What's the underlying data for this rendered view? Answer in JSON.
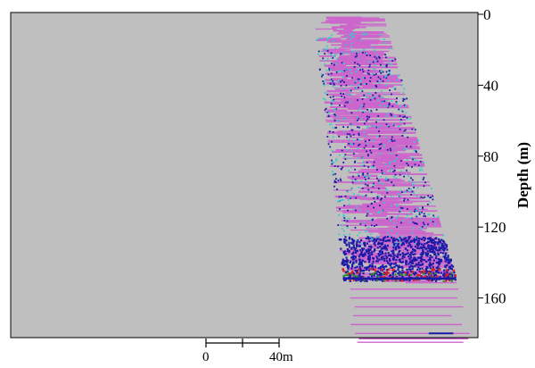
{
  "chart_data": {
    "type": "scatter",
    "ylabel": "Depth (m)",
    "y_inverted": true,
    "ylim": [
      0,
      190
    ],
    "xlim": [
      0,
      190
    ],
    "y_ticks": [
      0,
      40,
      80,
      120,
      160
    ],
    "y_tick_labels": [
      "0",
      "40",
      "80",
      "120",
      "160"
    ],
    "grid": false,
    "background_color": "#bfbfbf",
    "scale_bar": {
      "start_label": "0",
      "end_label": "40m",
      "length_m": 40
    },
    "series": [
      {
        "color": "#cc66cc",
        "role": "dominant horizontal streaks",
        "top_depth": 2,
        "bottom_depth": 185,
        "extent_at_top": [
          123,
          152
        ],
        "extent_at_bottom": [
          138,
          188
        ]
      },
      {
        "color": "#1a1aa6",
        "role": "dense dark blue scatter",
        "depth_range": [
          20,
          180
        ],
        "concentrated_depth": [
          125,
          150
        ]
      },
      {
        "color": "#33cccc",
        "role": "cyan scatter",
        "depth_range": [
          10,
          130
        ]
      },
      {
        "color": "#e02020",
        "role": "red points",
        "depth_range": [
          143,
          150
        ]
      },
      {
        "color": "#2a8a2a",
        "role": "green points",
        "depth_range": [
          145,
          150
        ]
      }
    ]
  }
}
